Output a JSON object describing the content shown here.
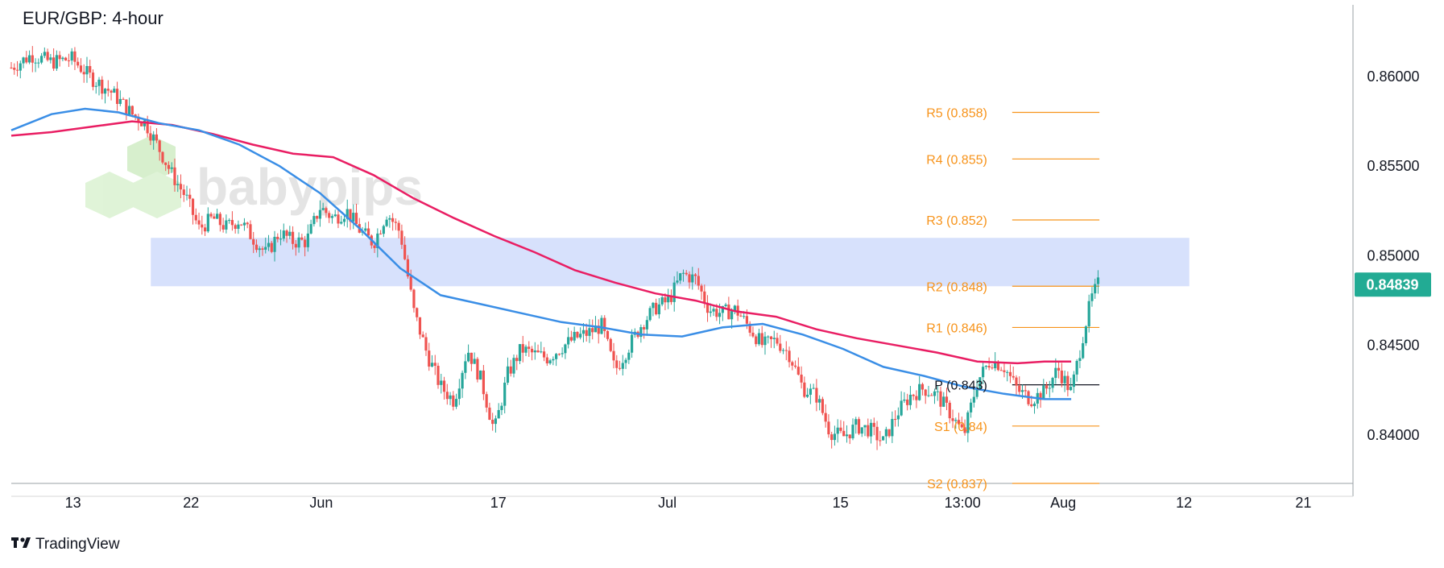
{
  "chart_data": {
    "type": "candlestick",
    "title": "EUR/GBP: 4-hour",
    "ylim": [
      0.8373,
      0.864
    ],
    "yticks": [
      {
        "value": 0.86,
        "label": "0.86000"
      },
      {
        "value": 0.855,
        "label": "0.85500"
      },
      {
        "value": 0.85,
        "label": "0.85000"
      },
      {
        "value": 0.845,
        "label": "0.84500"
      },
      {
        "value": 0.84,
        "label": "0.84000"
      }
    ],
    "xticks": [
      {
        "pos": 0.046,
        "label": "13"
      },
      {
        "pos": 0.134,
        "label": "22"
      },
      {
        "pos": 0.231,
        "label": "Jun"
      },
      {
        "pos": 0.363,
        "label": "17"
      },
      {
        "pos": 0.489,
        "label": "Jul"
      },
      {
        "pos": 0.618,
        "label": "15"
      },
      {
        "pos": 0.709,
        "label": "13:00"
      },
      {
        "pos": 0.784,
        "label": "Aug"
      },
      {
        "pos": 0.874,
        "label": "12"
      },
      {
        "pos": 0.963,
        "label": "21"
      }
    ],
    "current_price": {
      "value": 0.84839,
      "label": "0.84839",
      "color": "#22ab94"
    },
    "resistance_zone": {
      "y0": 0.8483,
      "y1": 0.851,
      "x0": 0.104,
      "x1": 0.878,
      "color": "#c9d7fb"
    },
    "pivot_levels": [
      {
        "label": "R5 (0.858)",
        "value": 0.858
      },
      {
        "label": "R4 (0.855)",
        "value": 0.8554
      },
      {
        "label": "R3 (0.852)",
        "value": 0.852
      },
      {
        "label": "R2 (0.848)",
        "value": 0.8483
      },
      {
        "label": "R1 (0.846)",
        "value": 0.846
      },
      {
        "label": "P (0.843)",
        "value": 0.8428
      },
      {
        "label": "S1 (0.84)",
        "value": 0.8405
      },
      {
        "label": "S2 (0.837)",
        "value": 0.8373
      }
    ],
    "pivot_color": "#f7931a",
    "pivot_x_range": [
      0.746,
      0.811
    ],
    "ma_fast": {
      "color": "#3a8ee6",
      "points": [
        [
          0,
          0.857
        ],
        [
          0.03,
          0.8579
        ],
        [
          0.055,
          0.8582
        ],
        [
          0.08,
          0.858
        ],
        [
          0.11,
          0.8574
        ],
        [
          0.14,
          0.857
        ],
        [
          0.17,
          0.8562
        ],
        [
          0.2,
          0.855
        ],
        [
          0.23,
          0.8535
        ],
        [
          0.26,
          0.8515
        ],
        [
          0.29,
          0.8493
        ],
        [
          0.32,
          0.8478
        ],
        [
          0.35,
          0.8473
        ],
        [
          0.38,
          0.8468
        ],
        [
          0.41,
          0.8463
        ],
        [
          0.44,
          0.846
        ],
        [
          0.47,
          0.8456
        ],
        [
          0.5,
          0.8455
        ],
        [
          0.53,
          0.846
        ],
        [
          0.56,
          0.8462
        ],
        [
          0.59,
          0.8456
        ],
        [
          0.62,
          0.8448
        ],
        [
          0.65,
          0.8438
        ],
        [
          0.68,
          0.8433
        ],
        [
          0.71,
          0.8427
        ],
        [
          0.74,
          0.8423
        ],
        [
          0.77,
          0.842
        ],
        [
          0.79,
          0.842
        ]
      ]
    },
    "ma_slow": {
      "color": "#e91e63",
      "points": [
        [
          0,
          0.8567
        ],
        [
          0.03,
          0.8569
        ],
        [
          0.06,
          0.8572
        ],
        [
          0.09,
          0.8575
        ],
        [
          0.12,
          0.8573
        ],
        [
          0.15,
          0.8568
        ],
        [
          0.18,
          0.8562
        ],
        [
          0.21,
          0.8557
        ],
        [
          0.24,
          0.8555
        ],
        [
          0.27,
          0.8545
        ],
        [
          0.3,
          0.8532
        ],
        [
          0.33,
          0.8521
        ],
        [
          0.36,
          0.8511
        ],
        [
          0.39,
          0.8502
        ],
        [
          0.42,
          0.8492
        ],
        [
          0.45,
          0.8485
        ],
        [
          0.48,
          0.8479
        ],
        [
          0.51,
          0.8475
        ],
        [
          0.54,
          0.8469
        ],
        [
          0.57,
          0.8466
        ],
        [
          0.6,
          0.8459
        ],
        [
          0.63,
          0.8454
        ],
        [
          0.66,
          0.845
        ],
        [
          0.69,
          0.8446
        ],
        [
          0.72,
          0.8441
        ],
        [
          0.75,
          0.844
        ],
        [
          0.77,
          0.8441
        ],
        [
          0.79,
          0.8441
        ]
      ]
    },
    "price_path": [
      [
        0,
        0.8605
      ],
      [
        0.015,
        0.8612
      ],
      [
        0.03,
        0.8608
      ],
      [
        0.045,
        0.861
      ],
      [
        0.06,
        0.8599
      ],
      [
        0.075,
        0.8591
      ],
      [
        0.09,
        0.8579
      ],
      [
        0.1,
        0.8574
      ],
      [
        0.11,
        0.856
      ],
      [
        0.12,
        0.8545
      ],
      [
        0.13,
        0.8533
      ],
      [
        0.14,
        0.8515
      ],
      [
        0.15,
        0.8521
      ],
      [
        0.16,
        0.8516
      ],
      [
        0.17,
        0.852
      ],
      [
        0.18,
        0.851
      ],
      [
        0.19,
        0.8501
      ],
      [
        0.2,
        0.8513
      ],
      [
        0.21,
        0.8508
      ],
      [
        0.22,
        0.8508
      ],
      [
        0.23,
        0.8527
      ],
      [
        0.24,
        0.8521
      ],
      [
        0.25,
        0.8525
      ],
      [
        0.26,
        0.8514
      ],
      [
        0.27,
        0.8507
      ],
      [
        0.28,
        0.8524
      ],
      [
        0.29,
        0.8513
      ],
      [
        0.3,
        0.8469
      ],
      [
        0.31,
        0.8445
      ],
      [
        0.32,
        0.8427
      ],
      [
        0.33,
        0.8419
      ],
      [
        0.34,
        0.8448
      ],
      [
        0.35,
        0.8431
      ],
      [
        0.36,
        0.8402
      ],
      [
        0.37,
        0.8434
      ],
      [
        0.38,
        0.8448
      ],
      [
        0.39,
        0.8445
      ],
      [
        0.4,
        0.8443
      ],
      [
        0.41,
        0.8449
      ],
      [
        0.42,
        0.8454
      ],
      [
        0.43,
        0.8457
      ],
      [
        0.44,
        0.8461
      ],
      [
        0.45,
        0.8436
      ],
      [
        0.46,
        0.8449
      ],
      [
        0.47,
        0.8462
      ],
      [
        0.48,
        0.8471
      ],
      [
        0.49,
        0.8475
      ],
      [
        0.5,
        0.849
      ],
      [
        0.51,
        0.8487
      ],
      [
        0.52,
        0.847
      ],
      [
        0.53,
        0.8468
      ],
      [
        0.54,
        0.847
      ],
      [
        0.55,
        0.846
      ],
      [
        0.56,
        0.845
      ],
      [
        0.57,
        0.8453
      ],
      [
        0.58,
        0.8445
      ],
      [
        0.59,
        0.8426
      ],
      [
        0.6,
        0.8422
      ],
      [
        0.61,
        0.8402
      ],
      [
        0.62,
        0.8399
      ],
      [
        0.63,
        0.8405
      ],
      [
        0.64,
        0.8403
      ],
      [
        0.65,
        0.8396
      ],
      [
        0.66,
        0.8412
      ],
      [
        0.67,
        0.8422
      ],
      [
        0.68,
        0.8426
      ],
      [
        0.69,
        0.8422
      ],
      [
        0.7,
        0.8412
      ],
      [
        0.71,
        0.84
      ],
      [
        0.72,
        0.843
      ],
      [
        0.73,
        0.8442
      ],
      [
        0.74,
        0.8438
      ],
      [
        0.75,
        0.8425
      ],
      [
        0.76,
        0.842
      ],
      [
        0.77,
        0.8424
      ],
      [
        0.78,
        0.8437
      ],
      [
        0.79,
        0.8424
      ],
      [
        0.8,
        0.846
      ],
      [
        0.805,
        0.8476
      ],
      [
        0.81,
        0.8484
      ]
    ],
    "watermark_text": "babypips",
    "footer_brand": "TradingView"
  }
}
